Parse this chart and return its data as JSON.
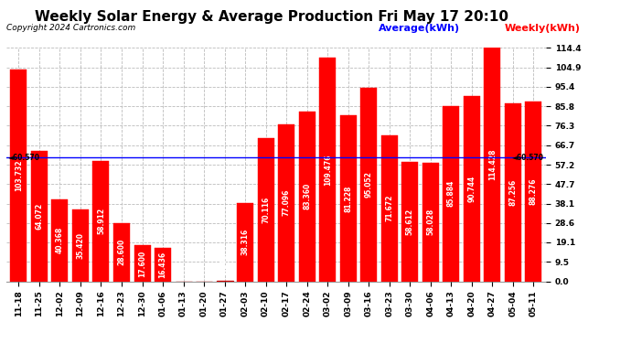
{
  "title": "Weekly Solar Energy & Average Production Fri May 17 20:10",
  "copyright": "Copyright 2024 Cartronics.com",
  "legend_average": "Average(kWh)",
  "legend_weekly": "Weekly(kWh)",
  "average_value": 60.57,
  "categories": [
    "11-18",
    "11-25",
    "12-02",
    "12-09",
    "12-16",
    "12-23",
    "12-30",
    "01-06",
    "01-13",
    "01-20",
    "01-27",
    "02-03",
    "02-10",
    "02-17",
    "02-24",
    "03-02",
    "03-09",
    "03-16",
    "03-23",
    "03-30",
    "04-06",
    "04-13",
    "04-20",
    "04-27",
    "05-04",
    "05-11"
  ],
  "values": [
    103.732,
    64.072,
    40.368,
    35.42,
    58.912,
    28.6,
    17.6,
    16.436,
    0.0,
    0.0,
    0.148,
    38.316,
    70.116,
    77.096,
    83.36,
    109.476,
    81.228,
    95.052,
    71.672,
    58.612,
    58.028,
    85.884,
    90.744,
    114.428,
    87.256,
    88.276
  ],
  "bar_color": "#FF0000",
  "average_line_color": "#0000FF",
  "ylim": [
    0.0,
    114.4
  ],
  "yticks": [
    0.0,
    9.5,
    19.1,
    28.6,
    38.1,
    47.7,
    57.2,
    66.7,
    76.3,
    85.8,
    95.4,
    104.9,
    114.4
  ],
  "grid_color": "#BBBBBB",
  "background_color": "#FFFFFF",
  "title_fontsize": 11,
  "copyright_fontsize": 6.5,
  "bar_label_fontsize": 5.5,
  "tick_label_fontsize": 6.5,
  "legend_fontsize": 8
}
